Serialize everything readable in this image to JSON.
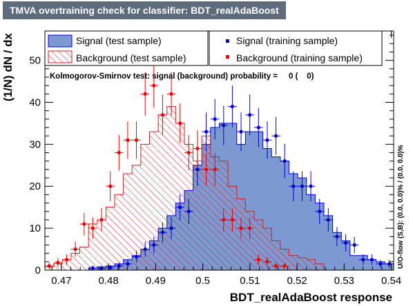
{
  "title": "TMVA overtraining check for classifier: BDT_realAdaBoost",
  "colors": {
    "title_bg": "#5d6b7d",
    "signal_fill": "#7d99d1",
    "signal_line": "#0000ee",
    "signal_points": "#0000cc",
    "background_hatch": "#cc2222",
    "background_points": "#ee0000"
  },
  "chart_data": {
    "type": "histogram",
    "xlabel": "BDT_realAdaBoost response",
    "ylabel": "(1/N) dN / dx",
    "xlim": [
      0.4665,
      0.5405
    ],
    "ylim": [
      0,
      57
    ],
    "xticks": [
      0.47,
      0.48,
      0.49,
      0.5,
      0.51,
      0.52,
      0.53,
      0.54
    ],
    "xtick_labels": [
      "0.47",
      "0.48",
      "0.49",
      "0.5",
      "0.51",
      "0.52",
      "0.53",
      "0.54"
    ],
    "yticks": [
      0,
      10,
      20,
      30,
      40,
      50
    ],
    "ytick_labels": [
      "0",
      "10",
      "20",
      "30",
      "40",
      "50"
    ],
    "bin_edges_start": 0.4665,
    "bin_width": 0.00185,
    "n_bins": 40,
    "ks_text": "Kolmogorov-Smirnov test: signal (background) probability =     0 (    0)",
    "uo_text": "U/O-flow (S,B): (0.0, 0.0)% / (0.0, 0.0)%",
    "legend": [
      {
        "label": "Signal (test sample)",
        "style": "filled-box"
      },
      {
        "label": "Signal (training sample)",
        "style": "marker"
      },
      {
        "label": "Background (test sample)",
        "style": "hatched-box"
      },
      {
        "label": "Background (training sample)",
        "style": "marker"
      }
    ],
    "series": [
      {
        "name": "Signal (test sample)",
        "kind": "hist",
        "values": [
          0,
          0,
          0,
          0,
          0,
          0.5,
          0.8,
          1.0,
          1.5,
          2.5,
          3.5,
          5,
          7,
          10,
          13,
          16,
          19,
          25,
          30,
          34,
          35,
          35,
          30,
          33,
          33,
          29,
          27,
          26,
          23,
          22,
          18,
          16,
          13,
          9,
          7,
          3.5,
          3.5,
          2.5,
          2,
          1.5
        ]
      },
      {
        "name": "Background (test sample)",
        "kind": "hist",
        "values": [
          0.8,
          1.5,
          2.5,
          4,
          5.5,
          11,
          12,
          15,
          18,
          23,
          25,
          30,
          33,
          37,
          39,
          35,
          30,
          26,
          32,
          27,
          26,
          20,
          17,
          14,
          12,
          10,
          7,
          5,
          3.5,
          3,
          2.5,
          1.5,
          0,
          0,
          0,
          0,
          0,
          0,
          0,
          0
        ]
      },
      {
        "name": "Signal (training sample)",
        "kind": "points",
        "values": [
          0,
          0,
          0,
          0,
          0,
          0.5,
          0.4,
          0.6,
          1.0,
          1.5,
          3.2,
          5.0,
          6.0,
          9.0,
          10.0,
          15.0,
          14.0,
          24.0,
          33.0,
          36.0,
          34.5,
          39.0,
          33.0,
          37.0,
          34.0,
          31.0,
          32.0,
          26.0,
          20.0,
          20.0,
          20.0,
          14.0,
          12.0,
          8.0,
          6.5,
          6.0,
          2.5,
          2.5,
          1.5,
          1.5
        ]
      },
      {
        "name": "Background (training sample)",
        "kind": "points",
        "values": [
          1.0,
          1.8,
          2.5,
          5.0,
          11.0,
          10.0,
          12.0,
          20.0,
          28.0,
          31.0,
          31.0,
          42.0,
          44.0,
          37.0,
          42.0,
          35.0,
          28.0,
          29.0,
          24.0,
          24.0,
          12.0,
          12.0,
          10.0,
          10.0,
          2.5,
          2.0,
          1.0,
          1.0,
          0,
          0,
          0,
          0,
          0,
          0,
          0,
          0,
          0,
          0,
          0,
          0
        ]
      }
    ]
  }
}
